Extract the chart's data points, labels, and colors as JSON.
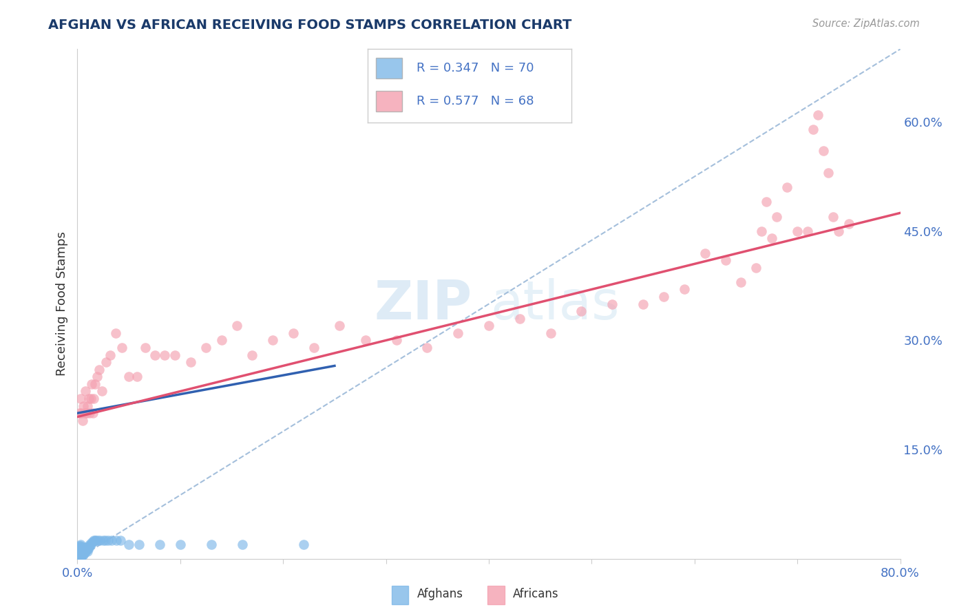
{
  "title": "AFGHAN VS AFRICAN RECEIVING FOOD STAMPS CORRELATION CHART",
  "source": "Source: ZipAtlas.com",
  "ylabel": "Receiving Food Stamps",
  "xlim": [
    0.0,
    0.8
  ],
  "ylim": [
    0.0,
    0.7
  ],
  "xticks": [
    0.0,
    0.1,
    0.2,
    0.3,
    0.4,
    0.5,
    0.6,
    0.7,
    0.8
  ],
  "yticks_right": [
    0.0,
    0.15,
    0.3,
    0.45,
    0.6
  ],
  "yticklabels_right": [
    "",
    "15.0%",
    "30.0%",
    "45.0%",
    "60.0%"
  ],
  "grid_color": "#cccccc",
  "background_color": "#ffffff",
  "afghan_color": "#7eb8e8",
  "african_color": "#f4a0b0",
  "afghan_line_color": "#3060b0",
  "african_line_color": "#e05070",
  "diagonal_color": "#9ab8d8",
  "legend_R_afghan": "0.347",
  "legend_N_afghan": "70",
  "legend_R_african": "0.577",
  "legend_N_african": "68",
  "title_color": "#1a3a6a",
  "axis_label_color": "#333333",
  "tick_label_color": "#4472c4",
  "afghan_scatter": {
    "x": [
      0.001,
      0.001,
      0.001,
      0.001,
      0.001,
      0.002,
      0.002,
      0.002,
      0.002,
      0.002,
      0.002,
      0.002,
      0.003,
      0.003,
      0.003,
      0.003,
      0.003,
      0.003,
      0.003,
      0.003,
      0.004,
      0.004,
      0.004,
      0.004,
      0.004,
      0.004,
      0.005,
      0.005,
      0.005,
      0.005,
      0.005,
      0.006,
      0.006,
      0.006,
      0.006,
      0.007,
      0.007,
      0.007,
      0.008,
      0.008,
      0.008,
      0.009,
      0.009,
      0.01,
      0.01,
      0.01,
      0.011,
      0.012,
      0.012,
      0.013,
      0.014,
      0.015,
      0.016,
      0.017,
      0.018,
      0.02,
      0.022,
      0.025,
      0.027,
      0.03,
      0.033,
      0.038,
      0.042,
      0.05,
      0.06,
      0.08,
      0.1,
      0.13,
      0.16,
      0.22
    ],
    "y": [
      0.005,
      0.008,
      0.01,
      0.012,
      0.015,
      0.003,
      0.005,
      0.007,
      0.01,
      0.012,
      0.015,
      0.018,
      0.002,
      0.005,
      0.008,
      0.01,
      0.012,
      0.015,
      0.018,
      0.02,
      0.003,
      0.006,
      0.008,
      0.01,
      0.013,
      0.016,
      0.005,
      0.008,
      0.01,
      0.012,
      0.016,
      0.005,
      0.008,
      0.01,
      0.013,
      0.008,
      0.01,
      0.013,
      0.01,
      0.013,
      0.016,
      0.012,
      0.015,
      0.01,
      0.013,
      0.016,
      0.015,
      0.018,
      0.02,
      0.02,
      0.022,
      0.023,
      0.025,
      0.025,
      0.025,
      0.025,
      0.025,
      0.025,
      0.025,
      0.025,
      0.025,
      0.025,
      0.025,
      0.02,
      0.02,
      0.02,
      0.02,
      0.02,
      0.02,
      0.02
    ]
  },
  "african_scatter": {
    "x": [
      0.002,
      0.003,
      0.004,
      0.005,
      0.006,
      0.007,
      0.008,
      0.009,
      0.01,
      0.011,
      0.012,
      0.013,
      0.014,
      0.015,
      0.016,
      0.017,
      0.019,
      0.021,
      0.024,
      0.028,
      0.032,
      0.037,
      0.043,
      0.05,
      0.058,
      0.066,
      0.075,
      0.085,
      0.095,
      0.11,
      0.125,
      0.14,
      0.155,
      0.17,
      0.19,
      0.21,
      0.23,
      0.255,
      0.28,
      0.31,
      0.34,
      0.37,
      0.4,
      0.43,
      0.46,
      0.49,
      0.52,
      0.55,
      0.57,
      0.59,
      0.61,
      0.63,
      0.645,
      0.66,
      0.665,
      0.67,
      0.675,
      0.68,
      0.69,
      0.7,
      0.71,
      0.715,
      0.72,
      0.725,
      0.73,
      0.735,
      0.74,
      0.75
    ],
    "y": [
      0.2,
      0.22,
      0.2,
      0.19,
      0.21,
      0.2,
      0.23,
      0.2,
      0.21,
      0.22,
      0.2,
      0.22,
      0.24,
      0.2,
      0.22,
      0.24,
      0.25,
      0.26,
      0.23,
      0.27,
      0.28,
      0.31,
      0.29,
      0.25,
      0.25,
      0.29,
      0.28,
      0.28,
      0.28,
      0.27,
      0.29,
      0.3,
      0.32,
      0.28,
      0.3,
      0.31,
      0.29,
      0.32,
      0.3,
      0.3,
      0.29,
      0.31,
      0.32,
      0.33,
      0.31,
      0.34,
      0.35,
      0.35,
      0.36,
      0.37,
      0.42,
      0.41,
      0.38,
      0.4,
      0.45,
      0.49,
      0.44,
      0.47,
      0.51,
      0.45,
      0.45,
      0.59,
      0.61,
      0.56,
      0.53,
      0.47,
      0.45,
      0.46
    ]
  }
}
